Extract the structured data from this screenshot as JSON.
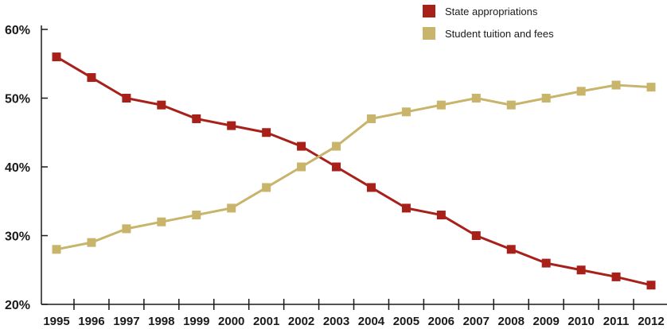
{
  "chart_data": {
    "type": "line",
    "title": "",
    "xlabel": "",
    "ylabel": "",
    "x": [
      "1995",
      "1996",
      "1997",
      "1998",
      "1999",
      "2000",
      "2001",
      "2002",
      "2003",
      "2004",
      "2005",
      "2006",
      "2007",
      "2008",
      "2009",
      "2010",
      "2011",
      "2012"
    ],
    "ylim": [
      20,
      60
    ],
    "y_ticks": [
      "20%",
      "30%",
      "40%",
      "50%",
      "60%"
    ],
    "grid": false,
    "legend_position": "top-right",
    "series": [
      {
        "name": "State appropriations",
        "color": "#a8201a",
        "values": [
          56,
          53,
          50,
          49,
          47,
          46,
          45,
          43,
          40,
          37,
          34,
          33,
          30,
          28,
          26,
          25,
          24,
          22.8
        ]
      },
      {
        "name": "Student tuition and fees",
        "color": "#c8b46a",
        "values": [
          28,
          29,
          31,
          32,
          33,
          34,
          37,
          40,
          43,
          47,
          48,
          49,
          50,
          49,
          50,
          51,
          51.9,
          51.6
        ]
      }
    ]
  }
}
